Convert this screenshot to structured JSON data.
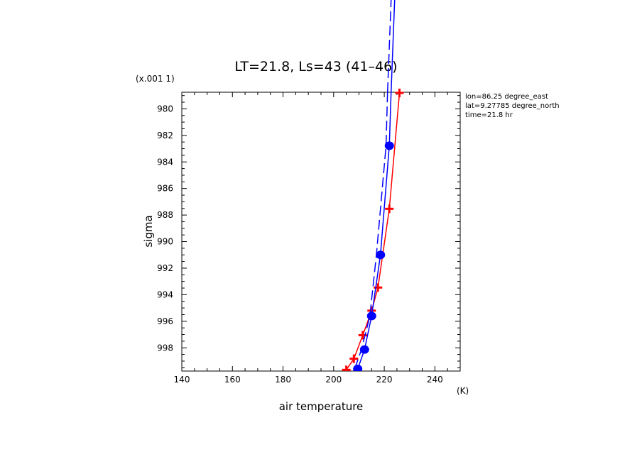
{
  "chart_data": {
    "type": "line",
    "title": "LT=21.8, Ls=43 (41–46)",
    "xlabel": "air temperature",
    "xunit": "(K)",
    "ylabel": "sigma",
    "yscale_note": "(x.001 1)",
    "xlim": [
      140,
      250
    ],
    "ylim": [
      999.75,
      978.75
    ],
    "x_ticks": [
      140,
      160,
      180,
      200,
      220,
      240
    ],
    "y_ticks": [
      980,
      982,
      984,
      986,
      988,
      990,
      992,
      994,
      996,
      998
    ],
    "info": [
      "lon=86.25 degree_east",
      "lat=9.27785 degree_north",
      "time=21.8 hr"
    ],
    "series": [
      {
        "color": "#ff0000",
        "style": "solid",
        "marker": "plus",
        "points": [
          [
            205.0,
            999.66
          ],
          [
            208.0,
            998.82
          ],
          [
            211.5,
            997.05
          ],
          [
            215.0,
            995.2
          ],
          [
            217.5,
            993.46
          ],
          [
            222.0,
            987.53
          ],
          [
            226.0,
            978.8
          ]
        ]
      },
      {
        "color": "#0000ff",
        "style": "solid",
        "marker": "circle",
        "points": [
          [
            209.5,
            999.59
          ],
          [
            212.2,
            998.13
          ],
          [
            215.0,
            995.6
          ],
          [
            218.5,
            991.0
          ],
          [
            222.0,
            982.78
          ],
          [
            222.7,
            978.75
          ]
        ]
      },
      {
        "color": "#0000ff",
        "style": "dashed",
        "marker": "none",
        "points": [
          [
            208.3,
            999.59
          ],
          [
            211.0,
            998.13
          ],
          [
            214.3,
            995.6
          ],
          [
            216.9,
            991.0
          ],
          [
            220.7,
            982.78
          ],
          [
            221.3,
            978.75
          ]
        ]
      }
    ]
  }
}
